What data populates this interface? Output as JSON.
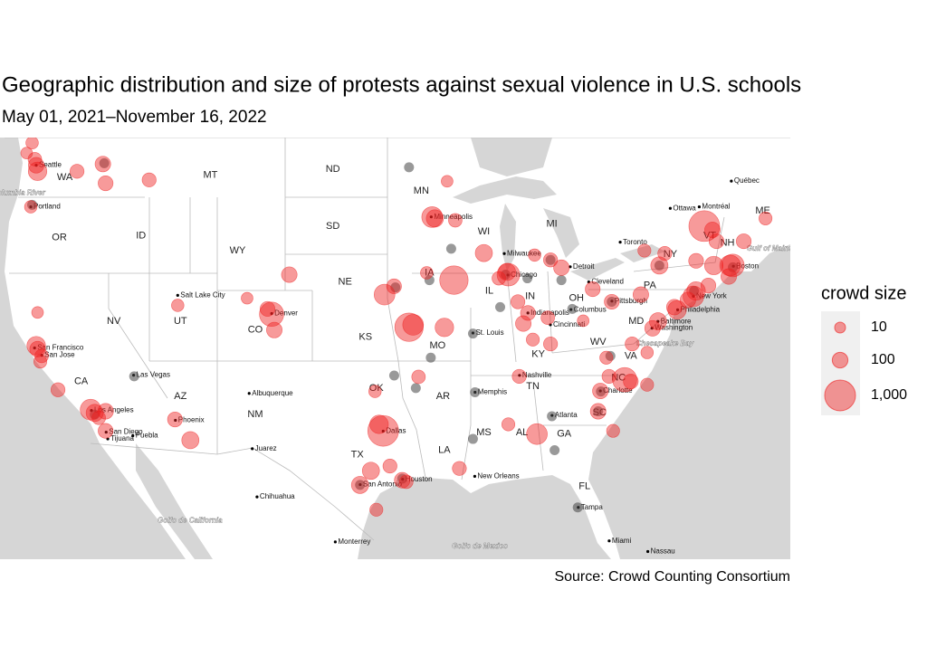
{
  "title": "Geographic distribution and size of protests against sexual violence in U.S. schools",
  "subtitle": "May 01, 2021–November 16, 2022",
  "source": "Source: Crowd Counting Consortium",
  "legend": {
    "title": "crowd size",
    "sizes": [
      10,
      100,
      {
        "value": 1000,
        "label": "1,000"
      }
    ]
  },
  "states": [
    {
      "label": "WA",
      "lon": -120.2,
      "lat": 47.0
    },
    {
      "label": "OR",
      "lon": -120.6,
      "lat": 43.9
    },
    {
      "label": "MT",
      "lon": -109.5,
      "lat": 47.1
    },
    {
      "label": "ID",
      "lon": -114.6,
      "lat": 44.0
    },
    {
      "label": "WY",
      "lon": -107.5,
      "lat": 43.2
    },
    {
      "label": "ND",
      "lon": -100.5,
      "lat": 47.4
    },
    {
      "label": "SD",
      "lon": -100.5,
      "lat": 44.5
    },
    {
      "label": "NE",
      "lon": -99.6,
      "lat": 41.5
    },
    {
      "label": "UT",
      "lon": -111.7,
      "lat": 39.3
    },
    {
      "label": "NV",
      "lon": -116.6,
      "lat": 39.3
    },
    {
      "label": "CO",
      "lon": -106.2,
      "lat": 38.8
    },
    {
      "label": "CA",
      "lon": -119.0,
      "lat": 35.8
    },
    {
      "label": "AZ",
      "lon": -111.7,
      "lat": 34.9
    },
    {
      "label": "NM",
      "lon": -106.2,
      "lat": 33.8
    },
    {
      "label": "KS",
      "lon": -98.1,
      "lat": 38.4
    },
    {
      "label": "OK",
      "lon": -97.3,
      "lat": 35.4
    },
    {
      "label": "TX",
      "lon": -98.7,
      "lat": 31.3
    },
    {
      "label": "MN",
      "lon": -94.0,
      "lat": 46.3
    },
    {
      "label": "IA",
      "lon": -93.4,
      "lat": 42.0
    },
    {
      "label": "MO",
      "lon": -92.8,
      "lat": 37.9
    },
    {
      "label": "AR",
      "lon": -92.4,
      "lat": 34.9
    },
    {
      "label": "LA",
      "lon": -92.3,
      "lat": 31.6
    },
    {
      "label": "WI",
      "lon": -89.4,
      "lat": 44.2
    },
    {
      "label": "IL",
      "lon": -89.0,
      "lat": 41.0
    },
    {
      "label": "MS",
      "lon": -89.4,
      "lat": 32.7
    },
    {
      "label": "MI",
      "lon": -84.4,
      "lat": 44.6
    },
    {
      "label": "IN",
      "lon": -86.0,
      "lat": 40.7
    },
    {
      "label": "KY",
      "lon": -85.4,
      "lat": 37.4
    },
    {
      "label": "TN",
      "lon": -85.8,
      "lat": 35.5
    },
    {
      "label": "AL",
      "lon": -86.6,
      "lat": 32.7
    },
    {
      "label": "GA",
      "lon": -83.5,
      "lat": 32.6
    },
    {
      "label": "FL",
      "lon": -82.0,
      "lat": 29.3
    },
    {
      "label": "OH",
      "lon": -82.6,
      "lat": 40.6
    },
    {
      "label": "WV",
      "lon": -81.0,
      "lat": 38.1
    },
    {
      "label": "VA",
      "lon": -78.6,
      "lat": 37.3
    },
    {
      "label": "NC",
      "lon": -79.5,
      "lat": 36.0
    },
    {
      "label": "SC",
      "lon": -80.9,
      "lat": 33.9
    },
    {
      "label": "PA",
      "lon": -77.2,
      "lat": 41.3
    },
    {
      "label": "NY",
      "lon": -75.7,
      "lat": 43.0
    },
    {
      "label": "MD",
      "lon": -78.2,
      "lat": 39.3
    },
    {
      "label": "VT",
      "lon": -72.8,
      "lat": 44.0
    },
    {
      "label": "NH",
      "lon": -71.5,
      "lat": 43.6
    },
    {
      "label": "ME",
      "lon": -68.9,
      "lat": 45.3
    }
  ],
  "cities": [
    {
      "label": "Seattle",
      "lon": -122.3,
      "lat": 47.6
    },
    {
      "label": "Portland",
      "lon": -122.7,
      "lat": 45.5
    },
    {
      "label": "Salt Lake City",
      "lon": -111.9,
      "lat": 40.76
    },
    {
      "label": "Denver",
      "lon": -104.99,
      "lat": 39.74
    },
    {
      "label": "Los Angeles",
      "lon": -118.24,
      "lat": 34.05
    },
    {
      "label": "San Diego",
      "lon": -117.16,
      "lat": 32.72
    },
    {
      "label": "Tijuana",
      "lon": -117.04,
      "lat": 32.3
    },
    {
      "label": "Puebla",
      "lon": -115.2,
      "lat": 32.5
    },
    {
      "label": "Las Vegas",
      "lon": -115.14,
      "lat": 36.17
    },
    {
      "label": "Phoenix",
      "lon": -112.07,
      "lat": 33.45
    },
    {
      "label": "Albuquerque",
      "lon": -106.65,
      "lat": 35.08
    },
    {
      "label": "Juarez",
      "lon": -106.42,
      "lat": 31.69
    },
    {
      "label": "Chihuahua",
      "lon": -106.07,
      "lat": 28.63
    },
    {
      "label": "Monterrey",
      "lon": -100.32,
      "lat": 25.69
    },
    {
      "label": "San Antonio",
      "lon": -98.49,
      "lat": 29.42
    },
    {
      "label": "Houston",
      "lon": -95.37,
      "lat": 29.76
    },
    {
      "label": "Dallas",
      "lon": -96.8,
      "lat": 32.78
    },
    {
      "label": "New Orleans",
      "lon": -90.07,
      "lat": 29.95
    },
    {
      "label": "Memphis",
      "lon": -90.05,
      "lat": 35.15
    },
    {
      "label": "Nashville",
      "lon": -86.78,
      "lat": 36.16
    },
    {
      "label": "St. Louis",
      "lon": -90.2,
      "lat": 38.63
    },
    {
      "label": "Chicago",
      "lon": -87.63,
      "lat": 41.88
    },
    {
      "label": "Milwaukee",
      "lon": -87.9,
      "lat": 43.04
    },
    {
      "label": "Minneapolis",
      "lon": -93.27,
      "lat": 44.98
    },
    {
      "label": "Indianapolis",
      "lon": -86.16,
      "lat": 39.77
    },
    {
      "label": "Cincinnati",
      "lon": -84.51,
      "lat": 39.1
    },
    {
      "label": "Columbus",
      "lon": -83.0,
      "lat": 39.96
    },
    {
      "label": "Cleveland",
      "lon": -81.69,
      "lat": 41.5
    },
    {
      "label": "Detroit",
      "lon": -83.05,
      "lat": 42.33
    },
    {
      "label": "Pittsburgh",
      "lon": -79.99,
      "lat": 40.44
    },
    {
      "label": "Toronto",
      "lon": -79.38,
      "lat": 43.65
    },
    {
      "label": "Ottawa",
      "lon": -75.7,
      "lat": 45.42
    },
    {
      "label": "Montréal",
      "lon": -73.57,
      "lat": 45.5
    },
    {
      "label": "Québec",
      "lon": -71.21,
      "lat": 46.81
    },
    {
      "label": "New York",
      "lon": -74.0,
      "lat": 40.71
    },
    {
      "label": "Philadelphia",
      "lon": -75.16,
      "lat": 39.95
    },
    {
      "label": "Baltimore",
      "lon": -76.61,
      "lat": 39.29
    },
    {
      "label": "Washington",
      "lon": -77.04,
      "lat": 38.91
    },
    {
      "label": "Boston",
      "lon": -71.06,
      "lat": 42.36
    },
    {
      "label": "Charlotte",
      "lon": -80.84,
      "lat": 35.23
    },
    {
      "label": "Atlanta",
      "lon": -84.39,
      "lat": 33.75
    },
    {
      "label": "Tampa",
      "lon": -82.46,
      "lat": 27.95
    },
    {
      "label": "Miami",
      "lon": -80.19,
      "lat": 25.76
    },
    {
      "label": "Nassau",
      "lon": -77.35,
      "lat": 25.05
    },
    {
      "label": "San Francisco",
      "lon": -122.42,
      "lat": 37.77
    },
    {
      "label": "San Jose",
      "lon": -121.89,
      "lat": 37.34
    }
  ],
  "water": [
    {
      "label": "Columbia River",
      "lon": -123.6,
      "lat": 46.2
    },
    {
      "label": "Golfo de California",
      "lon": -111.0,
      "lat": 27.1
    },
    {
      "label": "Golfo de Mexico",
      "lon": -89.7,
      "lat": 25.4
    },
    {
      "label": "Chesapeake Bay",
      "lon": -76.1,
      "lat": 38.0
    },
    {
      "label": "Gulf of Maine",
      "lon": -68.4,
      "lat": 43.3
    }
  ],
  "points": [
    {
      "lon": -122.3,
      "lat": 47.6,
      "size": 100
    },
    {
      "lon": -122.4,
      "lat": 47.9,
      "size": 50
    },
    {
      "lon": -122.2,
      "lat": 47.3,
      "size": 200
    },
    {
      "lon": -122.6,
      "lat": 48.7,
      "size": 30
    },
    {
      "lon": -123.0,
      "lat": 48.2,
      "size": 20
    },
    {
      "lon": -117.4,
      "lat": 47.66,
      "size": 100
    },
    {
      "lon": -117.2,
      "lat": 46.7,
      "size": 80
    },
    {
      "lon": -119.3,
      "lat": 47.3,
      "size": 60
    },
    {
      "lon": -122.7,
      "lat": 45.5,
      "size": 30
    },
    {
      "lon": -114.0,
      "lat": 46.87,
      "size": 60
    },
    {
      "lon": -122.3,
      "lat": 37.9,
      "size": 200
    },
    {
      "lon": -122.2,
      "lat": 37.7,
      "size": 100
    },
    {
      "lon": -121.9,
      "lat": 37.3,
      "size": 50
    },
    {
      "lon": -122.2,
      "lat": 39.8,
      "size": 20
    },
    {
      "lon": -122.0,
      "lat": 36.97,
      "size": 40
    },
    {
      "lon": -120.7,
      "lat": 35.3,
      "size": 60
    },
    {
      "lon": -118.3,
      "lat": 34.1,
      "size": 300
    },
    {
      "lon": -118.0,
      "lat": 33.9,
      "size": 150
    },
    {
      "lon": -117.2,
      "lat": 34.0,
      "size": 100
    },
    {
      "lon": -117.7,
      "lat": 33.6,
      "size": 50
    },
    {
      "lon": -117.2,
      "lat": 32.8,
      "size": 80
    },
    {
      "lon": -111.9,
      "lat": 40.2,
      "size": 30
    },
    {
      "lon": -112.1,
      "lat": 33.5,
      "size": 80
    },
    {
      "lon": -110.97,
      "lat": 32.22,
      "size": 150
    },
    {
      "lon": -105.0,
      "lat": 39.7,
      "size": 500
    },
    {
      "lon": -105.3,
      "lat": 40.0,
      "size": 80
    },
    {
      "lon": -104.8,
      "lat": 38.8,
      "size": 100
    },
    {
      "lon": -106.8,
      "lat": 40.6,
      "size": 20
    },
    {
      "lon": -103.7,
      "lat": 41.9,
      "size": 100
    },
    {
      "lon": -96.7,
      "lat": 40.8,
      "size": 300
    },
    {
      "lon": -96.0,
      "lat": 41.26,
      "size": 80
    },
    {
      "lon": -94.9,
      "lat": 38.96,
      "size": 800
    },
    {
      "lon": -94.6,
      "lat": 39.1,
      "size": 300
    },
    {
      "lon": -92.3,
      "lat": 38.95,
      "size": 200
    },
    {
      "lon": -91.6,
      "lat": 41.6,
      "size": 800
    },
    {
      "lon": -93.6,
      "lat": 42.0,
      "size": 30
    },
    {
      "lon": -93.2,
      "lat": 44.97,
      "size": 300
    },
    {
      "lon": -93.0,
      "lat": 44.9,
      "size": 150
    },
    {
      "lon": -91.5,
      "lat": 44.8,
      "size": 50
    },
    {
      "lon": -89.4,
      "lat": 43.07,
      "size": 150
    },
    {
      "lon": -92.1,
      "lat": 46.8,
      "size": 20
    },
    {
      "lon": -87.6,
      "lat": 41.9,
      "size": 400
    },
    {
      "lon": -87.7,
      "lat": 42.05,
      "size": 150
    },
    {
      "lon": -88.3,
      "lat": 41.7,
      "size": 50
    },
    {
      "lon": -83.7,
      "lat": 42.28,
      "size": 100
    },
    {
      "lon": -85.67,
      "lat": 42.96,
      "size": 30
    },
    {
      "lon": -84.5,
      "lat": 42.7,
      "size": 60
    },
    {
      "lon": -86.5,
      "lat": 39.17,
      "size": 100
    },
    {
      "lon": -86.9,
      "lat": 40.4,
      "size": 60
    },
    {
      "lon": -86.16,
      "lat": 39.77,
      "size": 80
    },
    {
      "lon": -84.7,
      "lat": 39.5,
      "size": 50
    },
    {
      "lon": -81.4,
      "lat": 41.1,
      "size": 80
    },
    {
      "lon": -82.1,
      "lat": 39.33,
      "size": 20
    },
    {
      "lon": -84.5,
      "lat": 38.0,
      "size": 60
    },
    {
      "lon": -85.8,
      "lat": 38.25,
      "size": 40
    },
    {
      "lon": -86.8,
      "lat": 36.1,
      "size": 60
    },
    {
      "lon": -97.4,
      "lat": 35.2,
      "size": 30
    },
    {
      "lon": -94.2,
      "lat": 36.07,
      "size": 50
    },
    {
      "lon": -96.8,
      "lat": 32.8,
      "size": 1000
    },
    {
      "lon": -97.1,
      "lat": 33.2,
      "size": 200
    },
    {
      "lon": -97.7,
      "lat": 30.3,
      "size": 150
    },
    {
      "lon": -98.5,
      "lat": 29.4,
      "size": 150
    },
    {
      "lon": -96.3,
      "lat": 30.6,
      "size": 60
    },
    {
      "lon": -95.4,
      "lat": 29.7,
      "size": 100
    },
    {
      "lon": -95.1,
      "lat": 29.6,
      "size": 50
    },
    {
      "lon": -97.3,
      "lat": 27.8,
      "size": 40
    },
    {
      "lon": -91.2,
      "lat": 30.45,
      "size": 60
    },
    {
      "lon": -87.6,
      "lat": 33.2,
      "size": 40
    },
    {
      "lon": -85.5,
      "lat": 32.6,
      "size": 300
    },
    {
      "lon": -79.05,
      "lat": 35.9,
      "size": 500
    },
    {
      "lon": -80.84,
      "lat": 35.23,
      "size": 100
    },
    {
      "lon": -78.6,
      "lat": 35.8,
      "size": 80
    },
    {
      "lon": -77.4,
      "lat": 35.6,
      "size": 40
    },
    {
      "lon": -80.2,
      "lat": 36.1,
      "size": 60
    },
    {
      "lon": -81.0,
      "lat": 34.0,
      "size": 100
    },
    {
      "lon": -79.9,
      "lat": 32.8,
      "size": 40
    },
    {
      "lon": -78.5,
      "lat": 38.0,
      "size": 60
    },
    {
      "lon": -80.4,
      "lat": 37.2,
      "size": 40
    },
    {
      "lon": -77.4,
      "lat": 37.5,
      "size": 30
    },
    {
      "lon": -77.0,
      "lat": 38.9,
      "size": 100
    },
    {
      "lon": -76.6,
      "lat": 39.3,
      "size": 150
    },
    {
      "lon": -75.2,
      "lat": 39.95,
      "size": 200
    },
    {
      "lon": -75.4,
      "lat": 40.1,
      "size": 100
    },
    {
      "lon": -80.0,
      "lat": 40.4,
      "size": 80
    },
    {
      "lon": -77.86,
      "lat": 40.8,
      "size": 100
    },
    {
      "lon": -74.0,
      "lat": 40.7,
      "size": 300
    },
    {
      "lon": -73.8,
      "lat": 41.0,
      "size": 200
    },
    {
      "lon": -74.4,
      "lat": 40.5,
      "size": 100
    },
    {
      "lon": -71.1,
      "lat": 42.4,
      "size": 400
    },
    {
      "lon": -71.3,
      "lat": 42.4,
      "size": 300
    },
    {
      "lon": -72.5,
      "lat": 42.4,
      "size": 200
    },
    {
      "lon": -71.4,
      "lat": 41.8,
      "size": 100
    },
    {
      "lon": -72.9,
      "lat": 41.3,
      "size": 80
    },
    {
      "lon": -73.2,
      "lat": 44.5,
      "size": 1000
    },
    {
      "lon": -72.6,
      "lat": 44.3,
      "size": 100
    },
    {
      "lon": -72.3,
      "lat": 43.7,
      "size": 80
    },
    {
      "lon": -76.5,
      "lat": 42.4,
      "size": 150
    },
    {
      "lon": -76.1,
      "lat": 43.05,
      "size": 60
    },
    {
      "lon": -77.6,
      "lat": 43.2,
      "size": 40
    },
    {
      "lon": -73.8,
      "lat": 42.65,
      "size": 80
    },
    {
      "lon": -70.3,
      "lat": 43.7,
      "size": 80
    },
    {
      "lon": -68.7,
      "lat": 44.9,
      "size": 40
    }
  ],
  "unknown_points": [
    {
      "lon": -117.3,
      "lat": 47.7
    },
    {
      "lon": -122.6,
      "lat": 45.6
    },
    {
      "lon": -94.9,
      "lat": 47.5
    },
    {
      "lon": -95.9,
      "lat": 41.2
    },
    {
      "lon": -93.4,
      "lat": 41.6
    },
    {
      "lon": -91.8,
      "lat": 43.3
    },
    {
      "lon": -90.2,
      "lat": 38.6
    },
    {
      "lon": -84.4,
      "lat": 33.7
    },
    {
      "lon": -87.8,
      "lat": 41.9
    },
    {
      "lon": -88.2,
      "lat": 40.1
    },
    {
      "lon": -86.2,
      "lat": 41.7
    },
    {
      "lon": -84.5,
      "lat": 42.7
    },
    {
      "lon": -83.7,
      "lat": 41.6
    },
    {
      "lon": -90.05,
      "lat": 35.15
    },
    {
      "lon": -90.2,
      "lat": 32.3
    },
    {
      "lon": -82.5,
      "lat": 27.95
    },
    {
      "lon": -80.8,
      "lat": 35.2
    },
    {
      "lon": -81.0,
      "lat": 34.0
    },
    {
      "lon": -84.2,
      "lat": 31.6
    },
    {
      "lon": -76.5,
      "lat": 42.4
    },
    {
      "lon": -71.1,
      "lat": 42.3
    },
    {
      "lon": -115.1,
      "lat": 36.1
    },
    {
      "lon": -118.0,
      "lat": 33.8
    },
    {
      "lon": -98.5,
      "lat": 29.4
    },
    {
      "lon": -95.4,
      "lat": 29.8
    },
    {
      "lon": -94.4,
      "lat": 35.4
    },
    {
      "lon": -95.99,
      "lat": 36.15
    },
    {
      "lon": -93.3,
      "lat": 37.2
    },
    {
      "lon": -82.9,
      "lat": 40.0
    },
    {
      "lon": -80.0,
      "lat": 40.4
    },
    {
      "lon": -73.95,
      "lat": 41.0
    },
    {
      "lon": -80.1,
      "lat": 37.3
    }
  ]
}
